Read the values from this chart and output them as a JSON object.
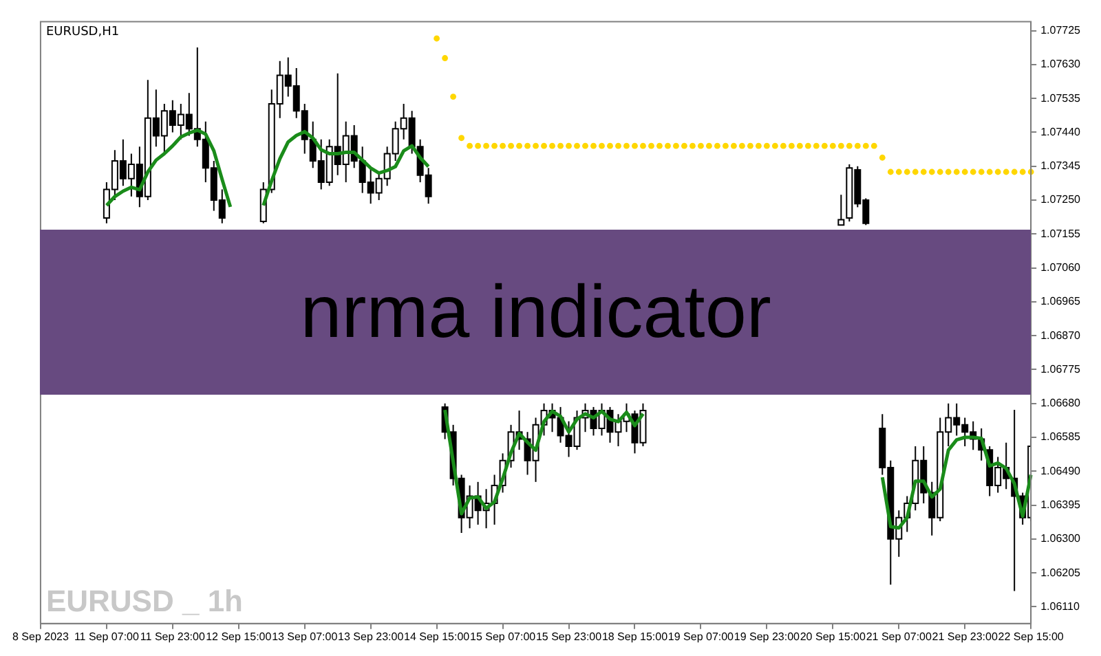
{
  "chart_data": {
    "type": "candlestick",
    "title": "nrma indicator",
    "annotations": [
      "EURUSD,H1",
      "EURUSD _ 1h"
    ],
    "legend": false,
    "grid": false,
    "categories": [
      "8 Sep 2023",
      null,
      null,
      null,
      null,
      null,
      null,
      null,
      "11 Sep 07:00",
      null,
      null,
      null,
      null,
      null,
      null,
      null,
      "11 Sep 23:00",
      null,
      null,
      null,
      null,
      null,
      null,
      null,
      "12 Sep 15:00",
      null,
      null,
      null,
      null,
      null,
      null,
      null,
      "13 Sep 07:00",
      null,
      null,
      null,
      null,
      null,
      null,
      null,
      "13 Sep 23:00",
      null,
      null,
      null,
      null,
      null,
      null,
      null,
      "14 Sep 15:00",
      null,
      null,
      null,
      null,
      null,
      null,
      null,
      "15 Sep 07:00",
      null,
      null,
      null,
      null,
      null,
      null,
      null,
      "15 Sep 23:00",
      null,
      null,
      null,
      null,
      null,
      null,
      null,
      "18 Sep 15:00",
      null,
      null,
      null,
      null,
      null,
      null,
      null,
      "19 Sep 07:00",
      null,
      null,
      null,
      null,
      null,
      null,
      null,
      "19 Sep 23:00",
      null,
      null,
      null,
      null,
      null,
      null,
      null,
      "20 Sep 15:00",
      null,
      null,
      null,
      null,
      null,
      null,
      null,
      "21 Sep 07:00",
      null,
      null,
      null,
      null,
      null,
      null,
      null,
      "21 Sep 23:00",
      null,
      null,
      null,
      null,
      null,
      null,
      null,
      "22 Sep 15:00"
    ],
    "ylim": [
      1.06063,
      1.0775
    ],
    "yticks": [
      {
        "value": 1.07725,
        "label": "1.07725"
      },
      {
        "value": 1.0763,
        "label": "1.07630"
      },
      {
        "value": 1.07535,
        "label": "1.07535"
      },
      {
        "value": 1.0744,
        "label": "1.07440"
      },
      {
        "value": 1.07345,
        "label": "1.07345"
      },
      {
        "value": 1.0725,
        "label": "1.07250"
      },
      {
        "value": 1.07155,
        "label": "1.07155"
      },
      {
        "value": 1.0706,
        "label": "1.07060"
      },
      {
        "value": 1.06965,
        "label": "1.06965"
      },
      {
        "value": 1.0687,
        "label": "1.06870"
      },
      {
        "value": 1.06775,
        "label": "1.06775"
      },
      {
        "value": 1.0668,
        "label": "1.06680"
      },
      {
        "value": 1.06585,
        "label": "1.06585"
      },
      {
        "value": 1.0649,
        "label": "1.06490"
      },
      {
        "value": 1.06395,
        "label": "1.06395"
      },
      {
        "value": 1.063,
        "label": "1.06300"
      },
      {
        "value": 1.06205,
        "label": "1.06205"
      },
      {
        "value": 1.0611,
        "label": "1.06110"
      }
    ],
    "ohlc": [
      null,
      null,
      null,
      null,
      null,
      null,
      null,
      null,
      [
        1.072,
        1.073,
        1.07185,
        1.0728
      ],
      [
        1.0728,
        1.0739,
        1.0725,
        1.0736
      ],
      [
        1.0736,
        1.0742,
        1.0729,
        1.0731
      ],
      [
        1.0731,
        1.0738,
        1.0726,
        1.0735
      ],
      [
        1.0735,
        1.074,
        1.0723,
        1.0726
      ],
      [
        1.0726,
        1.07587,
        1.0725,
        1.0748
      ],
      [
        1.0748,
        1.0756,
        1.074,
        1.0743
      ],
      [
        1.0743,
        1.0752,
        1.0738,
        1.075
      ],
      [
        1.075,
        1.0753,
        1.0744,
        1.0746
      ],
      [
        1.0746,
        1.0752,
        1.0742,
        1.0749
      ],
      [
        1.0749,
        1.0755,
        1.0743,
        1.0745
      ],
      [
        1.0745,
        1.07678,
        1.074,
        1.0742
      ],
      [
        1.0742,
        1.0747,
        1.073,
        1.0734
      ],
      [
        1.0734,
        1.0736,
        1.0722,
        1.0725
      ],
      [
        1.0725,
        1.0728,
        1.07185,
        1.072
      ],
      null,
      null,
      null,
      null,
      [
        1.0719,
        1.073,
        1.07185,
        1.0728
      ],
      [
        1.0728,
        1.0756,
        1.0727,
        1.0752
      ],
      [
        1.0752,
        1.0764,
        1.0748,
        1.076
      ],
      [
        1.076,
        1.0765,
        1.0754,
        1.0757
      ],
      [
        1.0757,
        1.0762,
        1.0748,
        1.075
      ],
      [
        1.075,
        1.0752,
        1.0738,
        1.0742
      ],
      [
        1.0742,
        1.0747,
        1.0734,
        1.0736
      ],
      [
        1.0736,
        1.0742,
        1.0728,
        1.073
      ],
      [
        1.073,
        1.0742,
        1.0729,
        1.074
      ],
      [
        1.074,
        1.07605,
        1.0732,
        1.0735
      ],
      [
        1.0735,
        1.0747,
        1.073,
        1.0743
      ],
      [
        1.0743,
        1.0746,
        1.0734,
        1.0736
      ],
      [
        1.0736,
        1.074,
        1.0727,
        1.073
      ],
      [
        1.073,
        1.0734,
        1.0724,
        1.0727
      ],
      [
        1.0727,
        1.0733,
        1.0725,
        1.0731
      ],
      [
        1.0731,
        1.074,
        1.0729,
        1.0738
      ],
      [
        1.0738,
        1.0747,
        1.0736,
        1.0745
      ],
      [
        1.0745,
        1.0752,
        1.0742,
        1.0748
      ],
      [
        1.0748,
        1.075,
        1.0738,
        1.074
      ],
      [
        1.074,
        1.0742,
        1.073,
        1.0732
      ],
      [
        1.0732,
        1.0734,
        1.0724,
        1.0726
      ],
      null,
      [
        1.0667,
        1.0668,
        1.0658,
        1.066
      ],
      [
        1.066,
        1.0662,
        1.0645,
        1.0647
      ],
      [
        1.0647,
        1.0648,
        1.06317,
        1.0636
      ],
      [
        1.0636,
        1.0645,
        1.0633,
        1.0642
      ],
      [
        1.0642,
        1.0646,
        1.0634,
        1.0638
      ],
      [
        1.0638,
        1.0644,
        1.0633,
        1.064
      ],
      [
        1.064,
        1.0648,
        1.0634,
        1.0645
      ],
      [
        1.0645,
        1.0654,
        1.0643,
        1.0652
      ],
      [
        1.0652,
        1.0662,
        1.065,
        1.066
      ],
      [
        1.066,
        1.0666,
        1.0655,
        1.0658
      ],
      [
        1.0658,
        1.066,
        1.0648,
        1.0652
      ],
      [
        1.0652,
        1.0664,
        1.0646,
        1.0662
      ],
      [
        1.0662,
        1.0668,
        1.0659,
        1.0666
      ],
      [
        1.0666,
        1.0668,
        1.066,
        1.0664
      ],
      [
        1.0664,
        1.0667,
        1.0657,
        1.0659
      ],
      [
        1.0659,
        1.0663,
        1.0653,
        1.0656
      ],
      [
        1.0656,
        1.0666,
        1.0655,
        1.0664
      ],
      [
        1.0664,
        1.0668,
        1.066,
        1.0666
      ],
      [
        1.0666,
        1.0667,
        1.0659,
        1.0661
      ],
      [
        1.0661,
        1.0668,
        1.0659,
        1.0666
      ],
      [
        1.0666,
        1.0667,
        1.0657,
        1.066
      ],
      [
        1.066,
        1.0665,
        1.0656,
        1.0663
      ],
      [
        1.0663,
        1.0668,
        1.066,
        1.0665
      ],
      [
        1.0665,
        1.0666,
        1.0654,
        1.0657
      ],
      [
        1.0657,
        1.0668,
        1.0656,
        1.0666
      ],
      null,
      null,
      null,
      null,
      null,
      null,
      null,
      null,
      null,
      null,
      null,
      null,
      null,
      null,
      null,
      null,
      null,
      null,
      null,
      null,
      null,
      null,
      null,
      [
        1.0718,
        1.07265,
        1.0718,
        1.07195
      ],
      [
        1.072,
        1.0735,
        1.0719,
        1.0734
      ],
      [
        1.07335,
        1.07345,
        1.0723,
        1.0724
      ],
      [
        1.0725,
        1.07255,
        1.0718,
        1.07185
      ],
      null,
      [
        1.0661,
        1.0665,
        1.0648,
        1.065
      ],
      [
        1.065,
        1.0652,
        1.06172,
        1.063
      ],
      [
        1.063,
        1.0638,
        1.0625,
        1.0636
      ],
      [
        1.0636,
        1.0642,
        1.0632,
        1.064
      ],
      [
        1.064,
        1.0656,
        1.0638,
        1.0652
      ],
      [
        1.0652,
        1.0656,
        1.064,
        1.0643
      ],
      [
        1.0643,
        1.0646,
        1.0631,
        1.0636
      ],
      [
        1.0636,
        1.0664,
        1.0635,
        1.066
      ],
      [
        1.066,
        1.0668,
        1.0656,
        1.0664
      ],
      [
        1.0664,
        1.0668,
        1.0659,
        1.0662
      ],
      [
        1.0662,
        1.0664,
        1.0656,
        1.066
      ],
      [
        1.066,
        1.0663,
        1.0655,
        1.0658
      ],
      [
        1.0658,
        1.0661,
        1.0652,
        1.0655
      ],
      [
        1.0655,
        1.0656,
        1.0642,
        1.0645
      ],
      [
        1.0645,
        1.0653,
        1.0643,
        1.065
      ],
      [
        1.065,
        1.0657,
        1.0644,
        1.0647
      ],
      [
        1.0647,
        1.06662,
        1.06154,
        1.0642
      ],
      [
        1.0642,
        1.0643,
        1.0634,
        1.0636
      ],
      [
        1.0636,
        1.0658,
        1.0635,
        1.0656
      ]
    ],
    "series": [
      {
        "type": "line",
        "color": "#1a8c1a",
        "line_style": "solid",
        "values": [
          null,
          null,
          null,
          null,
          null,
          null,
          null,
          null,
          1.07235,
          1.0726,
          1.07275,
          1.07286,
          1.07279,
          1.07329,
          1.07362,
          1.0738,
          1.07402,
          1.07427,
          1.07438,
          1.07446,
          1.07435,
          1.07388,
          1.07308,
          1.07231,
          null,
          null,
          null,
          1.07235,
          1.07304,
          1.07366,
          1.07413,
          1.07431,
          1.07442,
          1.07424,
          1.07391,
          1.0738,
          1.0738,
          1.07384,
          1.07384,
          1.07362,
          1.0734,
          1.07326,
          1.07333,
          1.07344,
          1.07388,
          1.07402,
          1.07369,
          1.07344,
          null,
          1.06662,
          1.06517,
          1.06371,
          1.06415,
          1.06418,
          1.06386,
          1.06404,
          1.06469,
          1.06542,
          1.06596,
          1.06571,
          1.06549,
          1.06629,
          1.06658,
          1.06644,
          1.066,
          1.06636,
          1.06651,
          1.0664,
          1.06658,
          1.06636,
          1.06629,
          1.06655,
          1.06618,
          1.06651,
          null,
          null,
          null,
          null,
          null,
          null,
          null,
          null,
          null,
          null,
          null,
          null,
          null,
          null,
          null,
          null,
          null,
          null,
          null,
          null,
          null,
          null,
          null,
          null,
          null,
          null,
          null,
          null,
          1.06473,
          1.06335,
          1.06331,
          1.0636,
          1.06462,
          1.06462,
          1.06418,
          1.0644,
          1.06549,
          1.06578,
          1.06585,
          1.06585,
          1.06582,
          1.06505,
          1.06513,
          1.06498,
          1.06455,
          1.06364,
          1.0648
        ]
      },
      {
        "type": "scatter",
        "color": "#ffd700",
        "marker": "circle",
        "values": [
          null,
          null,
          null,
          null,
          null,
          null,
          null,
          null,
          null,
          null,
          null,
          null,
          null,
          null,
          null,
          null,
          null,
          null,
          null,
          null,
          null,
          null,
          null,
          null,
          null,
          null,
          null,
          null,
          null,
          null,
          null,
          null,
          null,
          null,
          null,
          null,
          null,
          null,
          null,
          null,
          null,
          null,
          null,
          null,
          null,
          null,
          null,
          null,
          1.07703,
          1.07648,
          1.0754,
          1.07424,
          1.07402,
          1.07402,
          1.07402,
          1.07402,
          1.07402,
          1.07402,
          1.07402,
          1.07402,
          1.07402,
          1.07402,
          1.07402,
          1.07402,
          1.07402,
          1.07402,
          1.07402,
          1.07402,
          1.07402,
          1.07402,
          1.07402,
          1.07402,
          1.07402,
          1.07402,
          1.07402,
          1.07402,
          1.07402,
          1.07402,
          1.07402,
          1.07402,
          1.07402,
          1.07402,
          1.07402,
          1.07402,
          1.07402,
          1.07402,
          1.07402,
          1.07402,
          1.07402,
          1.07402,
          1.07402,
          1.07402,
          1.07402,
          1.07402,
          1.07402,
          1.07402,
          1.07402,
          1.07402,
          1.07402,
          1.07402,
          1.07402,
          1.07402,
          1.07369,
          1.07329,
          1.07329,
          1.07329,
          1.07329,
          1.07329,
          1.07329,
          1.07329,
          1.07329,
          1.07329,
          1.07329,
          1.07329,
          1.07329,
          1.07329,
          1.07329,
          1.07329,
          1.07329,
          1.07329,
          1.07329
        ]
      }
    ]
  }
}
